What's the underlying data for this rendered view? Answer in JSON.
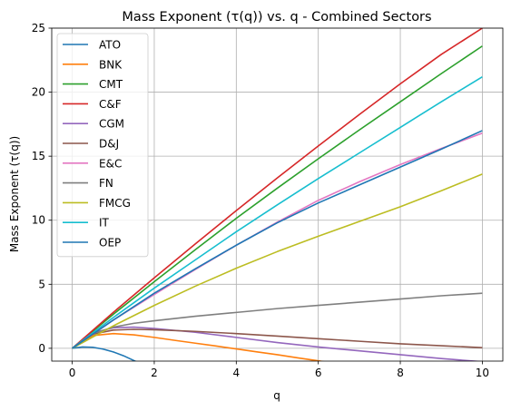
{
  "chart_data": {
    "type": "line",
    "title": "Mass Exponent (τ(q)) vs. q - Combined Sectors",
    "xlabel": "q",
    "ylabel": "Mass Exponent (τ(q))",
    "xlim": [
      -0.5,
      10.5
    ],
    "ylim": [
      -1,
      25
    ],
    "xticks": [
      0,
      2,
      4,
      6,
      8,
      10
    ],
    "yticks": [
      0,
      5,
      10,
      15,
      20,
      25
    ],
    "grid": true,
    "legend_position": "upper-left",
    "series": [
      {
        "name": "ATO",
        "color": "#1f77b4",
        "x": [
          0,
          0.25,
          0.5,
          0.75,
          1.0,
          1.25,
          1.5,
          1.6
        ],
        "y": [
          0,
          0.1,
          0.08,
          -0.06,
          -0.28,
          -0.58,
          -0.95,
          -1.1
        ]
      },
      {
        "name": "BNK",
        "color": "#ff7f0e",
        "x": [
          0,
          0.5,
          1,
          1.5,
          2,
          2.5,
          3,
          3.5,
          4,
          4.5,
          5,
          5.5,
          6,
          6.2
        ],
        "y": [
          0,
          1.0,
          1.15,
          1.05,
          0.85,
          0.62,
          0.4,
          0.18,
          -0.05,
          -0.28,
          -0.5,
          -0.75,
          -0.98,
          -1.08
        ]
      },
      {
        "name": "CMT",
        "color": "#2ca02c",
        "x": [
          0,
          1,
          2,
          3,
          4,
          5,
          6,
          7,
          8,
          9,
          10
        ],
        "y": [
          0,
          2.65,
          5.2,
          7.7,
          10.15,
          12.5,
          14.8,
          17.05,
          19.25,
          21.45,
          23.6
        ]
      },
      {
        "name": "C&F",
        "color": "#d62728",
        "x": [
          0,
          1,
          2,
          3,
          4,
          5,
          6,
          7,
          8,
          9,
          10
        ],
        "y": [
          0,
          2.8,
          5.5,
          8.15,
          10.75,
          13.3,
          15.8,
          18.25,
          20.65,
          22.95,
          25.0
        ]
      },
      {
        "name": "CGM",
        "color": "#9467bd",
        "x": [
          0,
          0.5,
          1,
          1.5,
          2,
          3,
          4,
          5,
          6,
          7,
          8,
          9,
          10
        ],
        "y": [
          0,
          1.2,
          1.6,
          1.65,
          1.55,
          1.25,
          0.85,
          0.45,
          0.1,
          -0.2,
          -0.5,
          -0.8,
          -1.05
        ]
      },
      {
        "name": "D&J",
        "color": "#8c564b",
        "x": [
          0,
          0.5,
          1,
          1.5,
          2,
          3,
          4,
          5,
          6,
          7,
          8,
          9,
          10
        ],
        "y": [
          0,
          1.1,
          1.42,
          1.48,
          1.45,
          1.32,
          1.15,
          0.95,
          0.75,
          0.55,
          0.35,
          0.2,
          0.05
        ]
      },
      {
        "name": "E&C",
        "color": "#e377c2",
        "x": [
          0,
          1,
          2,
          3,
          4,
          5,
          6,
          7,
          8,
          9,
          10
        ],
        "y": [
          0,
          2.2,
          4.2,
          6.15,
          8.05,
          9.85,
          11.55,
          13.0,
          14.35,
          15.6,
          16.8
        ]
      },
      {
        "name": "FN",
        "color": "#7f7f7f",
        "x": [
          0,
          0.5,
          1,
          1.5,
          2,
          3,
          4,
          5,
          6,
          7,
          8,
          9,
          10
        ],
        "y": [
          0,
          1.15,
          1.65,
          1.95,
          2.15,
          2.5,
          2.8,
          3.1,
          3.35,
          3.6,
          3.85,
          4.1,
          4.3
        ]
      },
      {
        "name": "FMCG",
        "color": "#bcbd22",
        "x": [
          0,
          1,
          2,
          3,
          4,
          5,
          6,
          7,
          8,
          9,
          10
        ],
        "y": [
          0,
          1.75,
          3.35,
          4.85,
          6.25,
          7.55,
          8.75,
          9.9,
          11.05,
          12.3,
          13.6
        ]
      },
      {
        "name": "IT",
        "color": "#17becf",
        "x": [
          0,
          1,
          2,
          3,
          4,
          5,
          6,
          7,
          8,
          9,
          10
        ],
        "y": [
          0,
          2.4,
          4.7,
          6.9,
          9.1,
          11.2,
          13.25,
          15.25,
          17.25,
          19.25,
          21.2
        ]
      },
      {
        "name": "OEP",
        "color": "#1f77b4",
        "x": [
          0,
          1,
          2,
          3,
          4,
          5,
          6,
          7,
          8,
          9,
          10
        ],
        "y": [
          0,
          2.2,
          4.3,
          6.2,
          8.05,
          9.8,
          11.35,
          12.75,
          14.15,
          15.55,
          17.0
        ]
      }
    ]
  }
}
